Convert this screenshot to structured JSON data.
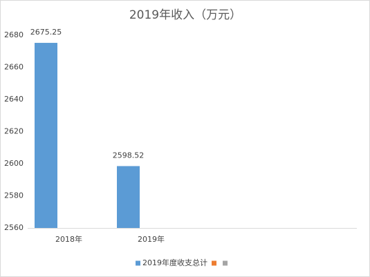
{
  "chart_data": {
    "type": "bar",
    "title": "2019年收入（万元）",
    "categories": [
      "2018年",
      "2019年",
      null,
      null
    ],
    "series": [
      {
        "name": "2019年度收支总计",
        "color": "#5b9bd5",
        "values": [
          2675.25,
          2598.52,
          null,
          null
        ]
      },
      {
        "color": "#ed7d31",
        "values": [
          null,
          null,
          null,
          null
        ]
      },
      {
        "color": "#a5a5a5",
        "values": [
          null,
          null,
          null,
          null
        ]
      }
    ],
    "ylim": [
      2560,
      2680
    ],
    "yticks": [
      2560,
      2580,
      2600,
      2620,
      2640,
      2660,
      2680
    ],
    "grid": false,
    "legend": "bottom"
  }
}
